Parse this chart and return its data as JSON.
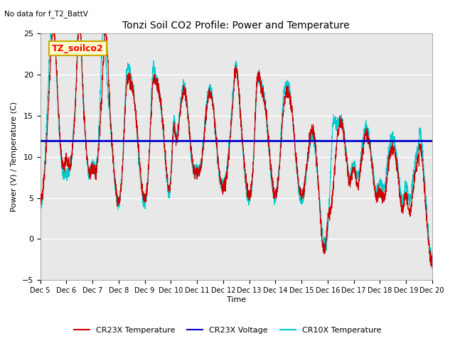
{
  "title": "Tonzi Soil CO2 Profile: Power and Temperature",
  "top_left_note": "No data for f_T2_BattV",
  "ylabel": "Power (V) / Temperature (C)",
  "xlabel": "Time",
  "ylim": [
    -5,
    25
  ],
  "yticks": [
    -5,
    0,
    5,
    10,
    15,
    20,
    25
  ],
  "xlim": [
    0,
    15
  ],
  "xtick_labels": [
    "Dec 5",
    "Dec 6",
    "Dec 7",
    "Dec 8",
    "Dec 9",
    "Dec 10",
    "Dec 11",
    "Dec 12",
    "Dec 13",
    "Dec 14",
    "Dec 15",
    "Dec 16",
    "Dec 17",
    "Dec 18",
    "Dec 19",
    "Dec 20"
  ],
  "voltage_value": 12.0,
  "voltage_color": "#0000cc",
  "cr23x_color": "#cc0000",
  "cr10x_color": "#00cccc",
  "background_color": "#e8e8e8",
  "legend_entries": [
    "CR23X Temperature",
    "CR23X Voltage",
    "CR10X Temperature"
  ],
  "annotation_box": "TZ_soilco2",
  "annotation_box_bg": "#ffffcc",
  "annotation_box_border": "#ccaa00"
}
